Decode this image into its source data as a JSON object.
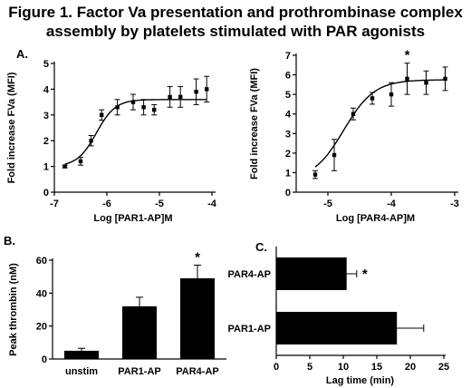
{
  "figure": {
    "title_line1": "Figure 1. Factor Va presentation and prothrombinase complex",
    "title_line2": "assembly by platelets stimulated with PAR agonists"
  },
  "chart_data": [
    {
      "id": "A1",
      "panel_label": "A.",
      "type": "scatter",
      "fit": "sigmoid",
      "xlabel": "Log [PAR1-AP]M",
      "ylabel": "Fold increase FVa (MFI)",
      "xlim": [
        -7,
        -4
      ],
      "ylim": [
        0,
        5
      ],
      "xticks": [
        -7,
        -6,
        -5,
        -4
      ],
      "yticks": [
        0,
        1,
        2,
        3,
        4,
        5
      ],
      "x": [
        -6.8,
        -6.5,
        -6.3,
        -6.1,
        -5.8,
        -5.5,
        -5.3,
        -5.1,
        -4.8,
        -4.6,
        -4.3,
        -4.1
      ],
      "y": [
        1.0,
        1.2,
        2.0,
        3.0,
        3.3,
        3.5,
        3.3,
        3.2,
        3.7,
        3.7,
        3.9,
        4.0
      ],
      "err": [
        0.05,
        0.15,
        0.2,
        0.2,
        0.3,
        0.3,
        0.3,
        0.2,
        0.4,
        0.4,
        0.5,
        0.5
      ],
      "fit_params": {
        "bottom": 1.0,
        "top": 3.6,
        "logEC50": -6.2,
        "hill": 2.4
      },
      "annotations": []
    },
    {
      "id": "A2",
      "panel_label": "",
      "type": "scatter",
      "fit": "sigmoid",
      "xlabel": "Log [PAR4-AP]M",
      "ylabel": "Fold increase FVa (MFI)",
      "xlim": [
        -5.5,
        -3
      ],
      "ylim": [
        0,
        7
      ],
      "xticks": [
        -5,
        -4,
        -3
      ],
      "yticks": [
        0,
        1,
        2,
        3,
        4,
        5,
        6,
        7
      ],
      "x": [
        -5.2,
        -4.9,
        -4.6,
        -4.3,
        -4.0,
        -3.75,
        -3.45,
        -3.15
      ],
      "y": [
        0.9,
        1.9,
        4.0,
        4.8,
        5.0,
        5.8,
        5.6,
        5.8
      ],
      "err": [
        0.2,
        0.8,
        0.3,
        0.3,
        0.6,
        0.8,
        0.6,
        0.6
      ],
      "fit_params": {
        "bottom": 0.6,
        "top": 5.75,
        "logEC50": -4.75,
        "hill": 1.8
      },
      "annotations": [
        {
          "text": "*",
          "x": -3.75
        }
      ]
    },
    {
      "id": "B",
      "panel_label": "B.",
      "type": "bar",
      "categories": [
        "unstim",
        "PAR1-AP",
        "PAR4-AP"
      ],
      "values": [
        5,
        32,
        49
      ],
      "err": [
        1.5,
        5.5,
        8
      ],
      "ylabel": "Peak thrombin (nM)",
      "xlabel": "",
      "ylim": [
        0,
        60
      ],
      "yticks": [
        0,
        20,
        40,
        60
      ],
      "annotations": [
        {
          "text": "*",
          "category": "PAR4-AP"
        }
      ]
    },
    {
      "id": "C",
      "panel_label": "C.",
      "type": "bar",
      "orientation": "horizontal",
      "categories": [
        "PAR4-AP",
        "PAR1-AP"
      ],
      "values": [
        10.5,
        18
      ],
      "err": [
        1.5,
        4
      ],
      "xlabel": "Lag time (min)",
      "ylabel": "",
      "xlim": [
        0,
        25
      ],
      "xticks": [
        0,
        5,
        10,
        15,
        20,
        25
      ],
      "annotations": [
        {
          "text": "*",
          "category": "PAR4-AP"
        }
      ]
    }
  ]
}
